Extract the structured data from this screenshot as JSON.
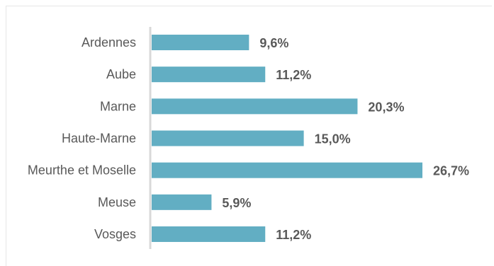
{
  "chart_data": {
    "type": "bar",
    "orientation": "horizontal",
    "categories": [
      "Ardennes",
      "Aube",
      "Marne",
      "Haute-Marne",
      "Meurthe et Moselle",
      "Meuse",
      "Vosges"
    ],
    "values": [
      9.6,
      11.2,
      20.3,
      15.0,
      26.7,
      5.9,
      11.2
    ],
    "value_labels": [
      "9,6%",
      "11,2%",
      "20,3%",
      "15,0%",
      "26,7%",
      "5,9%",
      "11,2%"
    ],
    "unit": "%",
    "title": "",
    "xlabel": "",
    "ylabel": "",
    "xlim": [
      0,
      26.7
    ],
    "grid": false,
    "legend": "none",
    "colors": {
      "bar": "#62aec3",
      "axis": "#d9d9d9",
      "label": "#595959"
    }
  }
}
